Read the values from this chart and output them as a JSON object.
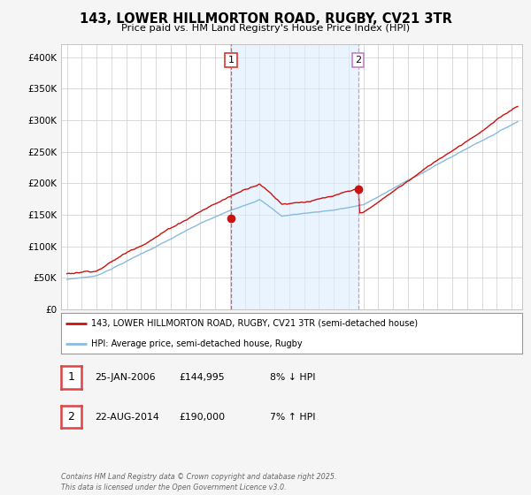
{
  "title": "143, LOWER HILLMORTON ROAD, RUGBY, CV21 3TR",
  "subtitle": "Price paid vs. HM Land Registry's House Price Index (HPI)",
  "legend_line1": "143, LOWER HILLMORTON ROAD, RUGBY, CV21 3TR (semi-detached house)",
  "legend_line2": "HPI: Average price, semi-detached house, Rugby",
  "transaction1_date": "25-JAN-2006",
  "transaction1_price": "£144,995",
  "transaction1_hpi": "8% ↓ HPI",
  "transaction2_date": "22-AUG-2014",
  "transaction2_price": "£190,000",
  "transaction2_hpi": "7% ↑ HPI",
  "footer": "Contains HM Land Registry data © Crown copyright and database right 2025.\nThis data is licensed under the Open Government Licence v3.0.",
  "line_color_red": "#cc1111",
  "line_color_blue": "#88bbdd",
  "vline1_color": "#dd4444",
  "vline2_color": "#cc88cc",
  "background_color": "#f5f5f5",
  "plot_bg": "#ffffff",
  "ylim": [
    0,
    420000
  ],
  "yticks": [
    0,
    50000,
    100000,
    150000,
    200000,
    250000,
    300000,
    350000,
    400000
  ],
  "marker1_year": 2006.07,
  "marker1_value": 144995,
  "marker2_year": 2014.64,
  "marker2_value": 190000,
  "shade_color": "#ddeeff",
  "shade_alpha": 0.6
}
